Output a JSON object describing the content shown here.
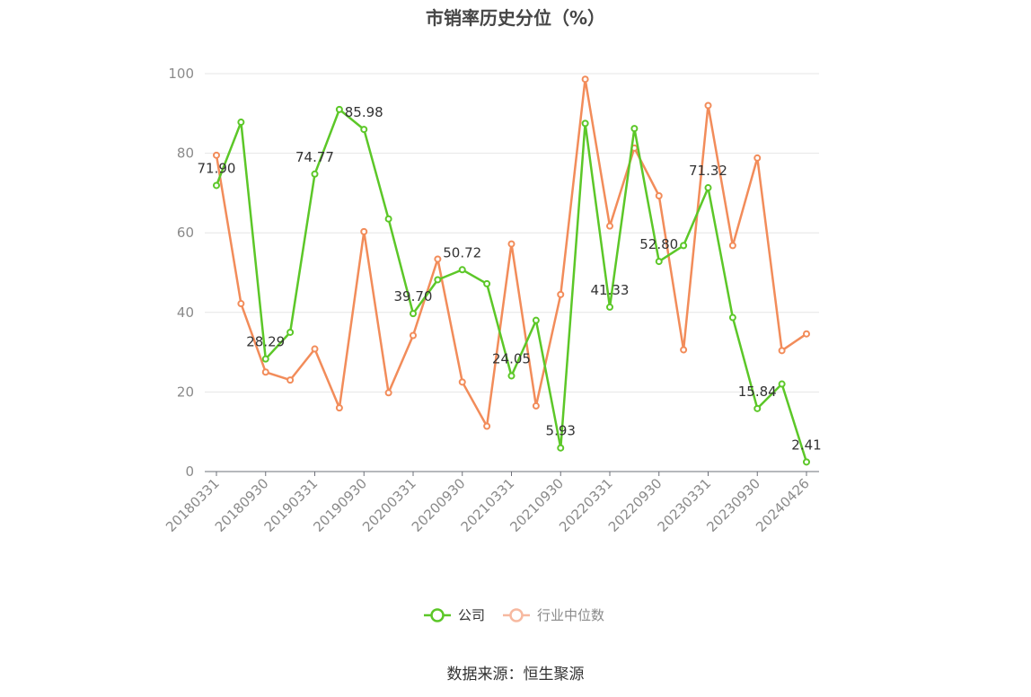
{
  "title": "市销率历史分位（%）",
  "source": "数据来源：恒生聚源",
  "colors": {
    "company": "#5cc728",
    "industry": "#f28c5a",
    "industry_legend": "#f7b9a0",
    "grid": "#e6e6e6",
    "axis": "#6e7079"
  },
  "chart_data": {
    "type": "line",
    "title": "市销率历史分位（%）",
    "xlabel": "",
    "ylabel": "",
    "ylim": [
      0,
      100
    ],
    "yticks": [
      0,
      20,
      40,
      60,
      80,
      100
    ],
    "xtick_labels": [
      "20180331",
      "20180930",
      "20190331",
      "20190930",
      "20200331",
      "20200930",
      "20210331",
      "20210930",
      "20220331",
      "20220930",
      "20230331",
      "20230930",
      "20240426"
    ],
    "x": [
      "20180331",
      "20180630",
      "20180930",
      "20181231",
      "20190331",
      "20190630",
      "20190930",
      "20191231",
      "20200331",
      "20200630",
      "20200930",
      "20201231",
      "20210331",
      "20210630",
      "20210930",
      "20211231",
      "20220331",
      "20220630",
      "20220930",
      "20221231",
      "20230331",
      "20230630",
      "20230930",
      "20231231",
      "20240426"
    ],
    "grid": true,
    "legend_position": "bottom",
    "series": [
      {
        "name": "公司",
        "values": [
          71.9,
          87.8,
          28.29,
          35.0,
          74.77,
          91.0,
          85.98,
          63.5,
          39.7,
          48.2,
          50.72,
          47.2,
          24.05,
          38.0,
          5.93,
          87.5,
          41.33,
          86.2,
          52.8,
          56.8,
          71.32,
          38.7,
          15.84,
          22.0,
          2.41
        ],
        "labels": [
          "71.90",
          "",
          "28.29",
          "",
          "74.77",
          "",
          "85.98",
          "",
          "39.70",
          "",
          "50.72",
          "",
          "24.05",
          "",
          "5.93",
          "",
          "41.33",
          "",
          "52.80",
          "",
          "71.32",
          "",
          "15.84",
          "",
          "2.41"
        ]
      },
      {
        "name": "行业中位数",
        "values": [
          79.5,
          42.2,
          25.0,
          23.0,
          30.8,
          16.0,
          60.3,
          19.8,
          34.2,
          53.4,
          22.5,
          11.4,
          57.2,
          16.5,
          44.5,
          98.6,
          61.7,
          81.3,
          69.3,
          30.6,
          92.0,
          56.8,
          78.8,
          30.4,
          34.6
        ],
        "labels": []
      }
    ]
  }
}
